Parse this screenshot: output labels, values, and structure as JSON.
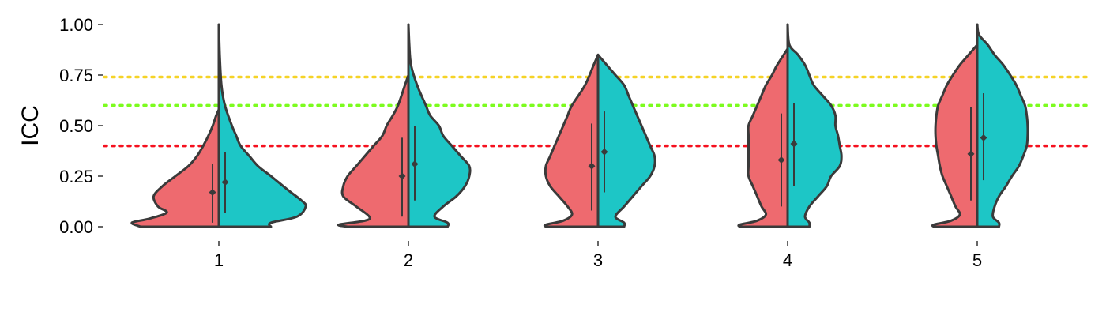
{
  "chart_data": {
    "type": "violin",
    "ylabel": "ICC",
    "xlabel": "",
    "ylim": [
      0,
      1
    ],
    "yticks": [
      0.0,
      0.25,
      0.5,
      0.75,
      1.0
    ],
    "ytick_labels": [
      "0.00",
      "0.25",
      "0.50",
      "0.75",
      "1.00"
    ],
    "categories": [
      "1",
      "2",
      "3",
      "4",
      "5"
    ],
    "legend": "none",
    "grid": false,
    "reference_lines": [
      {
        "y": 0.74,
        "color": "#F5D327"
      },
      {
        "y": 0.6,
        "color": "#7CFC1E"
      },
      {
        "y": 0.4,
        "color": "#F5101E"
      }
    ],
    "colors": {
      "left": "#EE6A6F",
      "right": "#1DC6C6",
      "outline": "#3a3a3a"
    },
    "groups": [
      {
        "left": {
          "mean": 0.17,
          "ci": [
            0.02,
            0.31
          ],
          "max": 0.58,
          "profile": [
            [
              0,
              0.09
            ],
            [
              0.02,
              0.1
            ],
            [
              0.04,
              0.08
            ],
            [
              0.07,
              0.06
            ],
            [
              0.1,
              0.07
            ],
            [
              0.15,
              0.075
            ],
            [
              0.2,
              0.065
            ],
            [
              0.25,
              0.05
            ],
            [
              0.3,
              0.035
            ],
            [
              0.35,
              0.025
            ],
            [
              0.4,
              0.018
            ],
            [
              0.45,
              0.012
            ],
            [
              0.5,
              0.007
            ],
            [
              0.55,
              0.003
            ],
            [
              0.58,
              0.0
            ]
          ]
        },
        "right": {
          "mean": 0.22,
          "ci": [
            0.07,
            0.37
          ],
          "max": 1.0,
          "profile": [
            [
              0,
              0.06
            ],
            [
              0.02,
              0.06
            ],
            [
              0.05,
              0.09
            ],
            [
              0.1,
              0.1
            ],
            [
              0.13,
              0.095
            ],
            [
              0.18,
              0.08
            ],
            [
              0.25,
              0.06
            ],
            [
              0.3,
              0.045
            ],
            [
              0.35,
              0.035
            ],
            [
              0.4,
              0.025
            ],
            [
              0.45,
              0.02
            ],
            [
              0.5,
              0.015
            ],
            [
              0.6,
              0.007
            ],
            [
              0.7,
              0.003
            ],
            [
              0.85,
              0.001
            ],
            [
              1.0,
              0.0
            ]
          ]
        }
      },
      {
        "left": {
          "mean": 0.25,
          "ci": [
            0.05,
            0.44
          ],
          "max": 0.75,
          "profile": [
            [
              0,
              0.07
            ],
            [
              0.01,
              0.08
            ],
            [
              0.03,
              0.05
            ],
            [
              0.05,
              0.045
            ],
            [
              0.1,
              0.06
            ],
            [
              0.15,
              0.075
            ],
            [
              0.2,
              0.075
            ],
            [
              0.25,
              0.07
            ],
            [
              0.3,
              0.06
            ],
            [
              0.35,
              0.05
            ],
            [
              0.4,
              0.04
            ],
            [
              0.45,
              0.03
            ],
            [
              0.5,
              0.025
            ],
            [
              0.55,
              0.018
            ],
            [
              0.6,
              0.012
            ],
            [
              0.7,
              0.004
            ],
            [
              0.75,
              0.0
            ]
          ]
        },
        "right": {
          "mean": 0.31,
          "ci": [
            0.13,
            0.5
          ],
          "max": 1.0,
          "profile": [
            [
              0,
              0.045
            ],
            [
              0.02,
              0.045
            ],
            [
              0.05,
              0.03
            ],
            [
              0.1,
              0.04
            ],
            [
              0.15,
              0.055
            ],
            [
              0.2,
              0.065
            ],
            [
              0.25,
              0.07
            ],
            [
              0.3,
              0.07
            ],
            [
              0.35,
              0.06
            ],
            [
              0.4,
              0.05
            ],
            [
              0.45,
              0.04
            ],
            [
              0.5,
              0.035
            ],
            [
              0.55,
              0.025
            ],
            [
              0.6,
              0.02
            ],
            [
              0.7,
              0.01
            ],
            [
              0.8,
              0.003
            ],
            [
              0.9,
              0.001
            ],
            [
              1.0,
              0.0
            ]
          ]
        }
      },
      {
        "left": {
          "mean": 0.3,
          "ci": [
            0.08,
            0.51
          ],
          "max": 0.85,
          "profile": [
            [
              0,
              0.06
            ],
            [
              0.01,
              0.06
            ],
            [
              0.03,
              0.04
            ],
            [
              0.06,
              0.03
            ],
            [
              0.1,
              0.035
            ],
            [
              0.15,
              0.045
            ],
            [
              0.2,
              0.055
            ],
            [
              0.25,
              0.06
            ],
            [
              0.3,
              0.06
            ],
            [
              0.35,
              0.055
            ],
            [
              0.4,
              0.05
            ],
            [
              0.45,
              0.045
            ],
            [
              0.5,
              0.04
            ],
            [
              0.55,
              0.035
            ],
            [
              0.6,
              0.03
            ],
            [
              0.7,
              0.015
            ],
            [
              0.8,
              0.005
            ],
            [
              0.85,
              0.0
            ]
          ]
        },
        "right": {
          "mean": 0.37,
          "ci": [
            0.17,
            0.57
          ],
          "max": 0.85,
          "profile": [
            [
              0,
              0.03
            ],
            [
              0.02,
              0.03
            ],
            [
              0.05,
              0.02
            ],
            [
              0.1,
              0.03
            ],
            [
              0.15,
              0.04
            ],
            [
              0.2,
              0.05
            ],
            [
              0.25,
              0.06
            ],
            [
              0.3,
              0.065
            ],
            [
              0.35,
              0.065
            ],
            [
              0.4,
              0.06
            ],
            [
              0.45,
              0.055
            ],
            [
              0.5,
              0.05
            ],
            [
              0.55,
              0.045
            ],
            [
              0.6,
              0.04
            ],
            [
              0.65,
              0.035
            ],
            [
              0.7,
              0.03
            ],
            [
              0.75,
              0.02
            ],
            [
              0.8,
              0.01
            ],
            [
              0.85,
              0.0
            ]
          ]
        }
      },
      {
        "left": {
          "mean": 0.33,
          "ci": [
            0.1,
            0.56
          ],
          "max": 0.88,
          "profile": [
            [
              0,
              0.055
            ],
            [
              0.01,
              0.055
            ],
            [
              0.03,
              0.035
            ],
            [
              0.06,
              0.025
            ],
            [
              0.1,
              0.03
            ],
            [
              0.15,
              0.035
            ],
            [
              0.2,
              0.04
            ],
            [
              0.25,
              0.045
            ],
            [
              0.3,
              0.045
            ],
            [
              0.35,
              0.045
            ],
            [
              0.4,
              0.045
            ],
            [
              0.45,
              0.045
            ],
            [
              0.5,
              0.045
            ],
            [
              0.55,
              0.04
            ],
            [
              0.6,
              0.035
            ],
            [
              0.65,
              0.03
            ],
            [
              0.7,
              0.025
            ],
            [
              0.75,
              0.018
            ],
            [
              0.8,
              0.012
            ],
            [
              0.88,
              0.0
            ]
          ]
        },
        "right": {
          "mean": 0.41,
          "ci": [
            0.2,
            0.61
          ],
          "max": 1.0,
          "profile": [
            [
              0,
              0.025
            ],
            [
              0.02,
              0.025
            ],
            [
              0.05,
              0.02
            ],
            [
              0.1,
              0.025
            ],
            [
              0.15,
              0.035
            ],
            [
              0.2,
              0.045
            ],
            [
              0.25,
              0.05
            ],
            [
              0.3,
              0.06
            ],
            [
              0.35,
              0.062
            ],
            [
              0.4,
              0.06
            ],
            [
              0.45,
              0.058
            ],
            [
              0.5,
              0.055
            ],
            [
              0.55,
              0.055
            ],
            [
              0.6,
              0.05
            ],
            [
              0.65,
              0.04
            ],
            [
              0.7,
              0.03
            ],
            [
              0.75,
              0.025
            ],
            [
              0.8,
              0.02
            ],
            [
              0.85,
              0.012
            ],
            [
              0.9,
              0.002
            ],
            [
              1.0,
              0.0
            ]
          ]
        }
      },
      {
        "left": {
          "mean": 0.36,
          "ci": [
            0.13,
            0.59
          ],
          "max": 0.9,
          "profile": [
            [
              0,
              0.05
            ],
            [
              0.01,
              0.05
            ],
            [
              0.03,
              0.03
            ],
            [
              0.06,
              0.02
            ],
            [
              0.1,
              0.025
            ],
            [
              0.15,
              0.03
            ],
            [
              0.2,
              0.035
            ],
            [
              0.25,
              0.04
            ],
            [
              0.3,
              0.043
            ],
            [
              0.35,
              0.045
            ],
            [
              0.4,
              0.047
            ],
            [
              0.45,
              0.048
            ],
            [
              0.5,
              0.048
            ],
            [
              0.55,
              0.047
            ],
            [
              0.6,
              0.045
            ],
            [
              0.65,
              0.04
            ],
            [
              0.7,
              0.035
            ],
            [
              0.75,
              0.028
            ],
            [
              0.8,
              0.02
            ],
            [
              0.85,
              0.01
            ],
            [
              0.9,
              0.0
            ]
          ]
        },
        "right": {
          "mean": 0.44,
          "ci": [
            0.23,
            0.66
          ],
          "max": 1.0,
          "profile": [
            [
              0,
              0.025
            ],
            [
              0.02,
              0.025
            ],
            [
              0.05,
              0.018
            ],
            [
              0.1,
              0.02
            ],
            [
              0.15,
              0.025
            ],
            [
              0.2,
              0.033
            ],
            [
              0.25,
              0.04
            ],
            [
              0.3,
              0.048
            ],
            [
              0.35,
              0.053
            ],
            [
              0.4,
              0.057
            ],
            [
              0.45,
              0.058
            ],
            [
              0.5,
              0.058
            ],
            [
              0.55,
              0.057
            ],
            [
              0.6,
              0.055
            ],
            [
              0.65,
              0.05
            ],
            [
              0.7,
              0.045
            ],
            [
              0.75,
              0.038
            ],
            [
              0.8,
              0.03
            ],
            [
              0.85,
              0.02
            ],
            [
              0.9,
              0.012
            ],
            [
              0.95,
              0.002
            ],
            [
              1.0,
              0.0
            ]
          ]
        }
      }
    ]
  }
}
